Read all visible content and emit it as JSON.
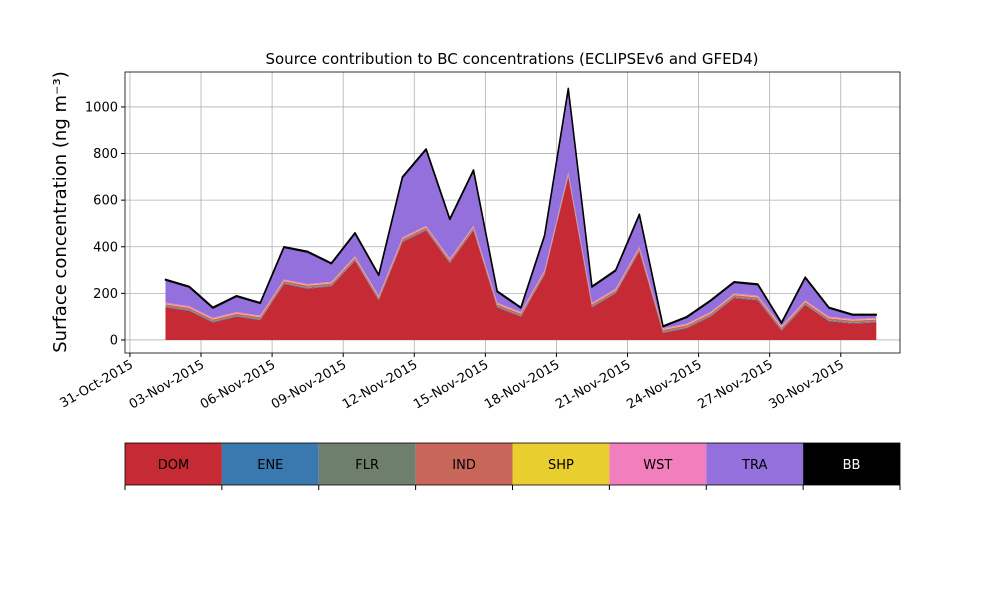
{
  "chart_data": {
    "type": "stacked_area",
    "title": "Source contribution to BC concentrations (ECLIPSEv6 and GFED4)",
    "y_label": "Surface concentration (ng m⁻³)",
    "x": [
      "2015-11-01",
      "2015-11-02",
      "2015-11-03",
      "2015-11-04",
      "2015-11-05",
      "2015-11-06",
      "2015-11-07",
      "2015-11-08",
      "2015-11-09",
      "2015-11-10",
      "2015-11-11",
      "2015-11-12",
      "2015-11-13",
      "2015-11-14",
      "2015-11-15",
      "2015-11-16",
      "2015-11-17",
      "2015-11-18",
      "2015-11-19",
      "2015-11-20",
      "2015-11-21",
      "2015-11-22",
      "2015-11-23",
      "2015-11-24",
      "2015-11-25",
      "2015-11-26",
      "2015-11-27",
      "2015-11-28",
      "2015-11-29",
      "2015-11-30",
      "2015-12-01"
    ],
    "series": [
      {
        "name": "DOM",
        "color": "#c52a35",
        "values": [
          140,
          125,
          75,
          100,
          85,
          240,
          220,
          230,
          340,
          170,
          420,
          470,
          330,
          470,
          140,
          100,
          280,
          700,
          140,
          200,
          380,
          30,
          50,
          100,
          180,
          170,
          40,
          150,
          80,
          70,
          75
        ]
      },
      {
        "name": "ENE",
        "color": "#3a78b0",
        "values": [
          3,
          3,
          3,
          3,
          3,
          3,
          3,
          3,
          3,
          3,
          3,
          3,
          3,
          3,
          3,
          3,
          3,
          3,
          3,
          3,
          3,
          3,
          3,
          3,
          3,
          3,
          3,
          3,
          3,
          3,
          3
        ]
      },
      {
        "name": "FLR",
        "color": "#6e7f6e",
        "values": [
          2,
          2,
          2,
          2,
          2,
          2,
          2,
          2,
          2,
          2,
          2,
          2,
          2,
          2,
          2,
          2,
          2,
          2,
          2,
          2,
          2,
          2,
          2,
          2,
          2,
          2,
          2,
          2,
          2,
          2,
          2
        ]
      },
      {
        "name": "IND",
        "color": "#c8665a",
        "values": [
          8,
          8,
          8,
          8,
          8,
          8,
          8,
          8,
          8,
          8,
          8,
          8,
          8,
          8,
          8,
          8,
          8,
          8,
          8,
          8,
          8,
          8,
          8,
          8,
          8,
          8,
          8,
          8,
          8,
          8,
          8
        ]
      },
      {
        "name": "SHP",
        "color": "#e8cf2f",
        "values": [
          2,
          2,
          2,
          2,
          2,
          2,
          2,
          2,
          2,
          2,
          2,
          2,
          2,
          2,
          2,
          2,
          2,
          2,
          2,
          2,
          2,
          2,
          2,
          2,
          2,
          2,
          2,
          2,
          2,
          2,
          2
        ]
      },
      {
        "name": "WST",
        "color": "#f27fbd",
        "values": [
          5,
          5,
          5,
          5,
          5,
          5,
          5,
          5,
          5,
          5,
          5,
          5,
          5,
          5,
          5,
          5,
          5,
          5,
          5,
          5,
          5,
          5,
          5,
          5,
          5,
          5,
          5,
          5,
          5,
          5,
          5
        ]
      },
      {
        "name": "TRA",
        "color": "#9370db",
        "values": [
          97,
          82,
          42,
          67,
          52,
          137,
          137,
          77,
          97,
          87,
          257,
          327,
          167,
          237,
          47,
          17,
          147,
          357,
          67,
          77,
          137,
          7,
          27,
          47,
          47,
          47,
          12,
          97,
          37,
          17,
          12
        ]
      },
      {
        "name": "BB",
        "color": "#000000",
        "values": [
          3,
          3,
          3,
          3,
          3,
          3,
          3,
          3,
          3,
          3,
          3,
          3,
          3,
          3,
          3,
          3,
          3,
          3,
          3,
          3,
          3,
          3,
          3,
          3,
          3,
          3,
          3,
          3,
          3,
          3,
          3
        ]
      }
    ],
    "xlim": [
      "2015-10-30T19:00",
      "2015-12-02T12:00"
    ],
    "xticks": [
      {
        "value": "2015-10-31",
        "label": "31-Oct-2015"
      },
      {
        "value": "2015-11-03",
        "label": "03-Nov-2015"
      },
      {
        "value": "2015-11-06",
        "label": "06-Nov-2015"
      },
      {
        "value": "2015-11-09",
        "label": "09-Nov-2015"
      },
      {
        "value": "2015-11-12",
        "label": "12-Nov-2015"
      },
      {
        "value": "2015-11-15",
        "label": "15-Nov-2015"
      },
      {
        "value": "2015-11-18",
        "label": "18-Nov-2015"
      },
      {
        "value": "2015-11-21",
        "label": "21-Nov-2015"
      },
      {
        "value": "2015-11-24",
        "label": "24-Nov-2015"
      },
      {
        "value": "2015-11-27",
        "label": "27-Nov-2015"
      },
      {
        "value": "2015-11-30",
        "label": "30-Nov-2015"
      }
    ],
    "ylim": [
      -56,
      1150
    ],
    "yticks": [
      0,
      200,
      400,
      600,
      800,
      1000
    ],
    "grid": true
  }
}
